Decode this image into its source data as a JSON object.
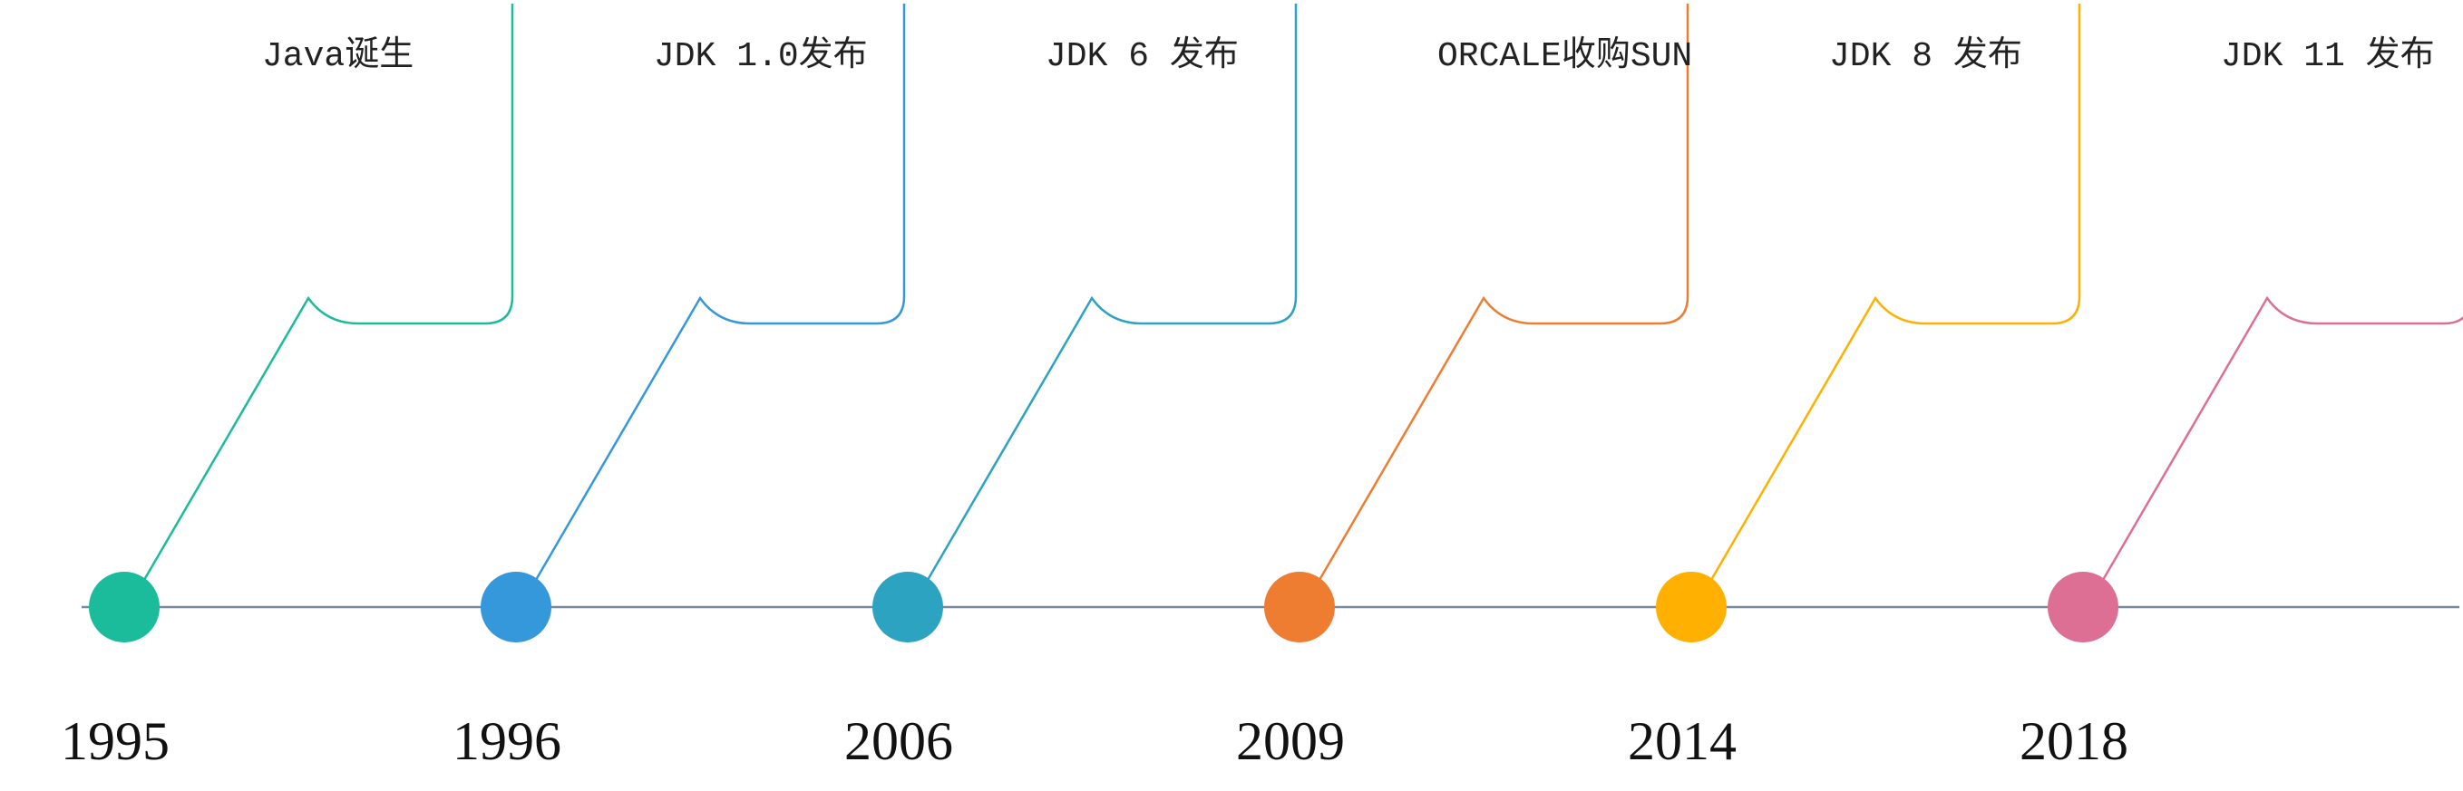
{
  "timeline": {
    "events": [
      {
        "year": "1995",
        "label": "Java诞生",
        "color": "#1ABC9C"
      },
      {
        "year": "1996",
        "label": "JDK 1.0发布",
        "color": "#3498DB"
      },
      {
        "year": "2006",
        "label": "JDK 6 发布",
        "color": "#2BA3C1"
      },
      {
        "year": "2009",
        "label": "ORCALE收购SUN",
        "color": "#EE7D32"
      },
      {
        "year": "2014",
        "label": "JDK 8 发布",
        "color": "#FFB000"
      },
      {
        "year": "2018",
        "label": "JDK 11 发布",
        "color": "#DC6F93"
      }
    ],
    "axis_color": "#7A8A99"
  }
}
